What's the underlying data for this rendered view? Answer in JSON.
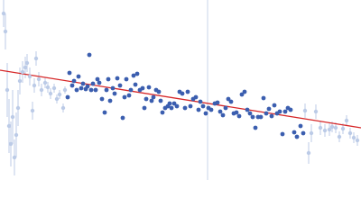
{
  "chart_data": {
    "type": "scatter",
    "xlim": [
      0,
      400
    ],
    "ylim": [
      0,
      200
    ],
    "vline": {
      "x": 230,
      "color": "#c9d5ea"
    },
    "fit": {
      "x": [
        0,
        400
      ],
      "y": [
        122,
        58
      ],
      "color": "#d62728"
    },
    "series": [
      {
        "color": "#bccbe7",
        "radius": 2.2,
        "x": [
          4,
          6,
          8,
          10,
          12,
          14,
          16,
          18,
          20,
          22,
          25,
          28,
          30,
          33,
          36,
          38,
          40,
          43,
          46,
          50,
          53,
          56,
          60,
          63,
          66,
          70,
          72
        ],
        "values": [
          185,
          165,
          100,
          60,
          40,
          70,
          25,
          50,
          80,
          110,
          120,
          125,
          130,
          115,
          77,
          105,
          135,
          112,
          100,
          108,
          103,
          96,
          102,
          90,
          95,
          80,
          100
        ],
        "errors": [
          15,
          20,
          30,
          30,
          25,
          30,
          20,
          25,
          20,
          15,
          12,
          12,
          10,
          10,
          10,
          8,
          8,
          8,
          7,
          6,
          6,
          6,
          5,
          5,
          5,
          5,
          4
        ]
      },
      {
        "color": "#3b5eaf",
        "radius": 2.4,
        "x": [
          75,
          77,
          80,
          82,
          85,
          87,
          90,
          92,
          95,
          97,
          99,
          101,
          103,
          106,
          108,
          110,
          113,
          116,
          118,
          120,
          122,
          125,
          127,
          130,
          133,
          136,
          138,
          140,
          143,
          145,
          148,
          150,
          152,
          155,
          158,
          160,
          162,
          165,
          168,
          170,
          173,
          176,
          178,
          180,
          183,
          186,
          188,
          190,
          193,
          196,
          199,
          202,
          205,
          208,
          211,
          214,
          217,
          220,
          222,
          225,
          228,
          231,
          234,
          238,
          241,
          244,
          247,
          250,
          253,
          256,
          259,
          262,
          265,
          268,
          271,
          274,
          277,
          280,
          283,
          286,
          289,
          292,
          295,
          298,
          301,
          304,
          307,
          310,
          313,
          316,
          319,
          322,
          326,
          329,
          333,
          336
        ],
        "values": [
          92,
          119,
          105,
          110,
          100,
          115,
          102,
          107,
          101,
          104,
          139,
          100,
          107,
          100,
          112,
          108,
          90,
          75,
          100,
          112,
          88,
          102,
          96,
          113,
          105,
          69,
          92,
          112,
          94,
          100,
          116,
          106,
          118,
          100,
          102,
          80,
          90,
          103,
          88,
          92,
          100,
          98,
          88,
          75,
          80,
          82,
          85,
          80,
          85,
          82,
          98,
          96,
          80,
          98,
          82,
          90,
          92,
          78,
          87,
          82,
          74,
          80,
          78,
          85,
          86,
          76,
          72,
          80,
          90,
          87,
          74,
          75,
          71,
          95,
          98,
          78,
          74,
          70,
          58,
          70,
          70,
          91,
          74,
          79,
          71,
          83,
          74,
          76,
          51,
          76,
          80,
          78,
          53,
          48,
          60,
          52
        ]
      },
      {
        "color": "#bccbe7",
        "radius": 2.2,
        "x": [
          338,
          342,
          345,
          350,
          355,
          360,
          365,
          368,
          372,
          376,
          380,
          384,
          388,
          392,
          396
        ],
        "values": [
          77,
          30,
          52,
          76,
          58,
          55,
          56,
          59,
          58,
          48,
          57,
          66,
          52,
          47,
          44
        ],
        "errors": [
          8,
          12,
          10,
          8,
          8,
          7,
          7,
          6,
          6,
          6,
          6,
          6,
          6,
          6,
          6
        ]
      }
    ]
  }
}
